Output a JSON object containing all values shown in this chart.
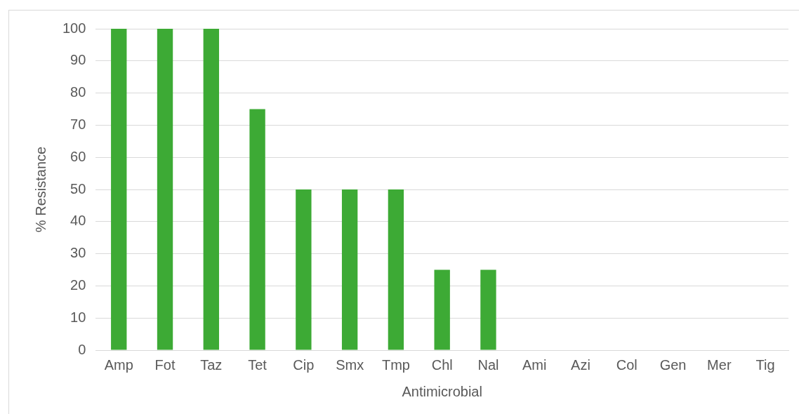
{
  "chart_data": {
    "type": "bar",
    "xlabel": "Antimicrobial",
    "ylabel": "% Resistance",
    "categories": [
      "Amp",
      "Fot",
      "Taz",
      "Tet",
      "Cip",
      "Smx",
      "Tmp",
      "Chl",
      "Nal",
      "Ami",
      "Azi",
      "Col",
      "Gen",
      "Mer",
      "Tig"
    ],
    "values": [
      100,
      100,
      100,
      75,
      50,
      50,
      50,
      25,
      25,
      0,
      0,
      0,
      0,
      0,
      0
    ],
    "color": "#3daa35",
    "ylim": [
      0,
      100
    ],
    "yticks": [
      0,
      10,
      20,
      30,
      40,
      50,
      60,
      70,
      80,
      90,
      100
    ],
    "grid": "y",
    "legend": false
  }
}
